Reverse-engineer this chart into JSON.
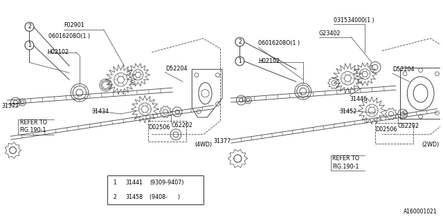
{
  "bg_color": "#ffffff",
  "line_color": "#404040",
  "text_color": "#000000",
  "fig_width": 6.4,
  "fig_height": 3.2,
  "dpi": 100,
  "watermark": "A160001021",
  "legend_items": [
    {
      "symbol": "1",
      "part": "31441",
      "note": "(9309-9407)"
    },
    {
      "symbol": "2",
      "part": "31458",
      "note": "(9408-      )"
    }
  ]
}
